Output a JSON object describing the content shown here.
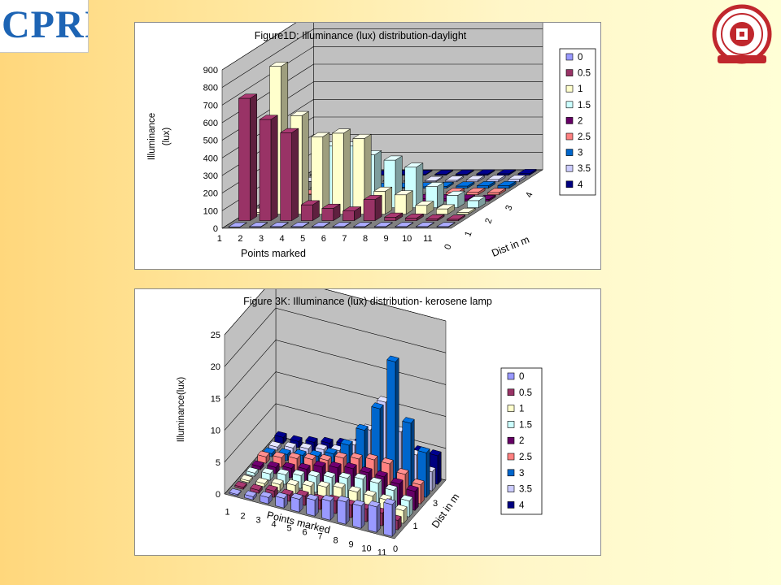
{
  "logos": {
    "left_text": "CPRI",
    "right_text": ""
  },
  "chart_data": [
    {
      "type": "bar3d",
      "title": "Figure1D:  Illuminance (lux) distribution-daylight",
      "xlabel": "Points marked",
      "ylabel_line1": "Illuminance",
      "ylabel_line2": "(lux)",
      "zlabel": "Dist in m",
      "ylim": [
        0,
        900
      ],
      "yticks": [
        "0",
        "100",
        "200",
        "300",
        "400",
        "500",
        "600",
        "700",
        "800",
        "900"
      ],
      "categories": [
        "1",
        "2",
        "3",
        "4",
        "5",
        "6",
        "7",
        "8",
        "9",
        "10",
        "11"
      ],
      "depth_ticks": [
        "0",
        "1",
        "2",
        "3",
        "4"
      ],
      "legend_placement": "right",
      "series": [
        {
          "name": "0",
          "color": "#9999ff",
          "values": [
            2,
            3,
            3,
            3,
            3,
            3,
            3,
            3,
            3,
            3,
            3
          ]
        },
        {
          "name": "0.5",
          "color": "#993366",
          "values": [
            695,
            575,
            500,
            90,
            70,
            55,
            120,
            20,
            15,
            10,
            8
          ]
        },
        {
          "name": "1",
          "color": "#ffffcc",
          "values": [
            10,
            840,
            560,
            440,
            460,
            430,
            130,
            110,
            50,
            30,
            10
          ]
        },
        {
          "name": "1.5",
          "color": "#ccffff",
          "values": [
            5,
            10,
            15,
            350,
            350,
            300,
            270,
            230,
            120,
            70,
            40
          ]
        },
        {
          "name": "2",
          "color": "#660066",
          "values": [
            2,
            4,
            5,
            6,
            8,
            10,
            12,
            15,
            14,
            12,
            10
          ]
        },
        {
          "name": "2.5",
          "color": "#ff8080",
          "values": [
            2,
            3,
            4,
            5,
            6,
            8,
            10,
            12,
            13,
            14,
            12
          ]
        },
        {
          "name": "3",
          "color": "#0066cc",
          "values": [
            1,
            2,
            3,
            4,
            5,
            6,
            8,
            10,
            12,
            14,
            15
          ]
        },
        {
          "name": "3.5",
          "color": "#ccccff",
          "values": [
            1,
            2,
            2,
            3,
            4,
            5,
            6,
            8,
            10,
            12,
            13
          ]
        },
        {
          "name": "4",
          "color": "#000080",
          "values": [
            1,
            1,
            2,
            2,
            3,
            4,
            5,
            6,
            7,
            8,
            9
          ]
        }
      ]
    },
    {
      "type": "bar3d",
      "title": "Figure 3K: Illuminance (lux) distribution- kerosene lamp",
      "xlabel": "Points marked",
      "ylabel_line1": "Illuminance(lux)",
      "ylabel_line2": "",
      "zlabel": "Dist in m",
      "ylim": [
        0,
        25
      ],
      "yticks": [
        "0",
        "5",
        "10",
        "15",
        "20",
        "25"
      ],
      "categories": [
        "1",
        "2",
        "3",
        "4",
        "5",
        "6",
        "7",
        "8",
        "9",
        "10",
        "11"
      ],
      "depth_ticks": [
        "0",
        "1",
        "3"
      ],
      "legend_placement": "right",
      "series": [
        {
          "name": "0",
          "color": "#9999ff",
          "values": [
            0.2,
            0.5,
            1,
            1.5,
            2,
            2.5,
            3,
            3.5,
            3.5,
            4,
            5
          ]
        },
        {
          "name": "0.5",
          "color": "#993366",
          "values": [
            0.3,
            0.5,
            1,
            1,
            1.5,
            1.5,
            2,
            2,
            2,
            2,
            1.5
          ]
        },
        {
          "name": "1",
          "color": "#ffffcc",
          "values": [
            0.3,
            0.5,
            1,
            1.5,
            2,
            2.5,
            3,
            3,
            3,
            3,
            2
          ]
        },
        {
          "name": "1.5",
          "color": "#ccffff",
          "values": [
            0.5,
            1,
            1.5,
            2,
            2.5,
            3,
            3.5,
            4,
            4,
            3.5,
            2.5
          ]
        },
        {
          "name": "2",
          "color": "#660066",
          "values": [
            0.5,
            1,
            1.5,
            2,
            3,
            3.5,
            4,
            4,
            4,
            3.5,
            3
          ]
        },
        {
          "name": "2.5",
          "color": "#ff8080",
          "values": [
            1,
            1.5,
            2,
            2.5,
            3,
            4,
            4.5,
            5,
            5,
            4,
            3
          ]
        },
        {
          "name": "3",
          "color": "#0066cc",
          "values": [
            0.5,
            1,
            1.5,
            2,
            3,
            5,
            8,
            12,
            20,
            11,
            7
          ]
        },
        {
          "name": "3.5",
          "color": "#ccccff",
          "values": [
            0.5,
            1,
            1.5,
            2,
            2.5,
            4,
            7,
            12,
            8,
            5,
            3
          ]
        },
        {
          "name": "4",
          "color": "#000080",
          "values": [
            1,
            1,
            1.5,
            2,
            2.5,
            3,
            3.5,
            4,
            4.5,
            4.5,
            4.5
          ]
        }
      ]
    }
  ]
}
